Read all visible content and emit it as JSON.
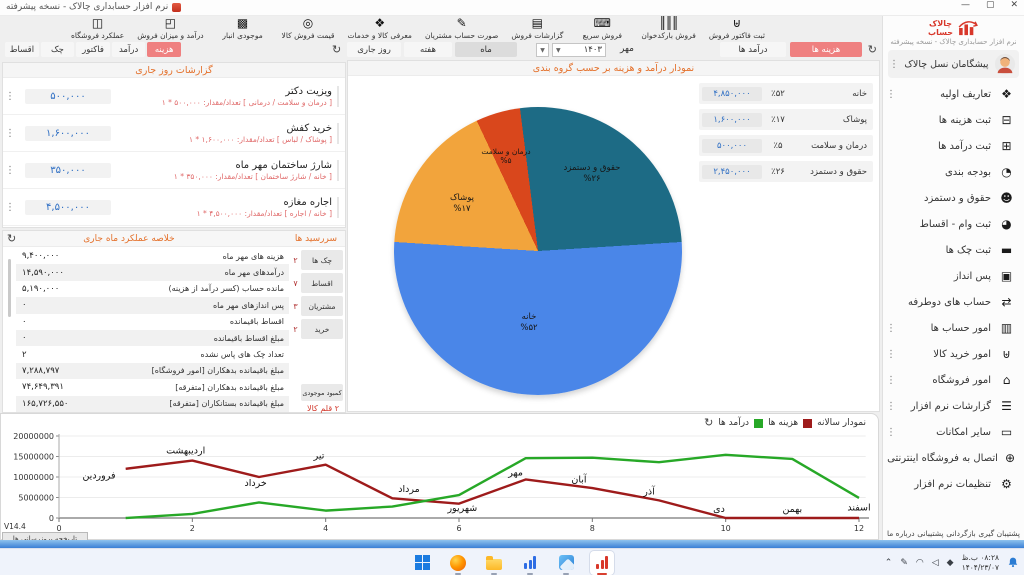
{
  "titlebar": {
    "title": "نرم افزار حسابداری چالاک - نسخه پیشرفته"
  },
  "window_controls": {
    "minimize": "—",
    "maximize": "▢",
    "close": "✕"
  },
  "sidebar": {
    "brand_line1": "چالاک",
    "brand_line2": "حساب",
    "subtitle": "نرم افزار حسابداری چالاک - نسخه پیشرفته",
    "user": "پیشگامان نسل چالاک",
    "items": [
      {
        "label": "تعاریف اولیه",
        "icon": "❖",
        "icon_name": "definitions-icon",
        "kebab": true
      },
      {
        "label": "ثبت هزینه ها",
        "icon": "⊟",
        "icon_name": "register-expenses-icon",
        "kebab": false
      },
      {
        "label": "ثبت درآمد ها",
        "icon": "⊞",
        "icon_name": "register-incomes-icon",
        "kebab": false
      },
      {
        "label": "بودجه بندی",
        "icon": "◔",
        "icon_name": "budgeting-icon",
        "kebab": false
      },
      {
        "label": "حقوق و دستمزد",
        "icon": "☻",
        "icon_name": "payroll-icon",
        "kebab": false
      },
      {
        "label": "ثبت وام - اقساط",
        "icon": "◕",
        "icon_name": "loans-installments-icon",
        "kebab": false
      },
      {
        "label": "ثبت چک ها",
        "icon": "▬",
        "icon_name": "checks-icon",
        "kebab": false
      },
      {
        "label": "پس انداز",
        "icon": "▣",
        "icon_name": "savings-icon",
        "kebab": false
      },
      {
        "label": "حساب های دوطرفه",
        "icon": "⇄",
        "icon_name": "two-way-accounts-icon",
        "kebab": false
      },
      {
        "label": "امور حساب ها",
        "icon": "▥",
        "icon_name": "accounts-icon",
        "kebab": true
      },
      {
        "label": "امور خرید کالا",
        "icon": "⊎",
        "icon_name": "purchases-cart-icon",
        "kebab": true
      },
      {
        "label": "امور فروشگاه",
        "icon": "⌂",
        "icon_name": "store-icon",
        "kebab": true
      },
      {
        "label": "گزارشات نرم افزار",
        "icon": "☰",
        "icon_name": "software-reports-icon",
        "kebab": true
      },
      {
        "label": "سایر امکانات",
        "icon": "▭",
        "icon_name": "other-features-icon",
        "kebab": true
      },
      {
        "label": "اتصال به فروشگاه اینترنتی",
        "icon": "⊕",
        "icon_name": "online-store-connect-icon",
        "kebab": false
      },
      {
        "label": "تنظیمات نرم افزار",
        "icon": "⚙",
        "icon_name": "settings-icon",
        "kebab": false
      }
    ],
    "footer_links": [
      "درباره ما",
      "پشتیبانی",
      "بازگردانی",
      "پشتیبان گیری"
    ]
  },
  "toolbar": {
    "buttons": [
      {
        "label": "ثبت فاکتور فروش",
        "icon": "⊎",
        "icon_name": "sales-invoice-cart-icon"
      },
      {
        "label": "فروش بارکدخوان",
        "icon": "║║║",
        "icon_name": "barcode-scanner-icon"
      },
      {
        "label": "فروش سریع",
        "icon": "⌨",
        "icon_name": "quick-sale-icon"
      },
      {
        "label": "گزارشات فروش",
        "icon": "▤",
        "icon_name": "sales-reports-printer-icon"
      },
      {
        "label": "صورت حساب مشتریان",
        "icon": "✎",
        "icon_name": "customer-statement-icon"
      },
      {
        "label": "معرفی کالا و خدمات",
        "icon": "❖",
        "icon_name": "goods-services-icon"
      },
      {
        "label": "قیمت فروش کالا",
        "icon": "◎",
        "icon_name": "price-lookup-icon"
      },
      {
        "label": "موجودی انبار",
        "icon": "▩",
        "icon_name": "inventory-box-icon"
      },
      {
        "label": "درآمد و میزان فروش",
        "icon": "◰",
        "icon_name": "income-sales-icon"
      },
      {
        "label": "عملکرد فروشگاه",
        "icon": "◫",
        "icon_name": "store-performance-icon"
      }
    ]
  },
  "filter": {
    "expense_tab": "هزینه ها",
    "income_tab": "درآمد ها",
    "month": "مهر",
    "year": "۱۴۰۳",
    "period_month": "ماه",
    "period_week": "هفته",
    "period_today": "روز جاری"
  },
  "left_tabs": {
    "items": [
      "هزینه",
      "درآمد",
      "فاکتور",
      "چک",
      "اقساط"
    ],
    "selected_index": 0
  },
  "daily_reports": {
    "title": "گزارشات روز جاری",
    "items": [
      {
        "title": "ویزیت دکتر",
        "sub": "[ درمان و سلامت / درمانی ]   تعداد/مقدار: ۵۰۰,۰۰۰ * ۱",
        "amount": "۵۰۰,۰۰۰"
      },
      {
        "title": "خرید کفش",
        "sub": "[ پوشاک / لباس ]   تعداد/مقدار: ۱,۶۰۰,۰۰۰ * ۱",
        "amount": "۱,۶۰۰,۰۰۰"
      },
      {
        "title": "شارژ ساختمان مهر ماه",
        "sub": "[ خانه / شارژ ساختمان ]   تعداد/مقدار: ۳۵۰,۰۰۰ * ۱",
        "amount": "۳۵۰,۰۰۰"
      },
      {
        "title": "اجاره مغازه",
        "sub": "[ خانه / اجاره ]   تعداد/مقدار: ۴,۵۰۰,۰۰۰ * ۱",
        "amount": "۴,۵۰۰,۰۰۰"
      }
    ]
  },
  "summary": {
    "title": "خلاصه عملکرد ماه جاری",
    "dues_title": "سررسید ها",
    "rows": [
      {
        "label": "هزینه های مهر ماه",
        "value": "۹,۴۰۰,۰۰۰"
      },
      {
        "label": "درآمدهای مهر ماه",
        "value": "۱۴,۵۹۰,۰۰۰"
      },
      {
        "label": "مانده حساب (کسر درآمد از هزینه)",
        "value": "۵,۱۹۰,۰۰۰"
      },
      {
        "label": "پس اندازهای  مهر ماه",
        "value": "۰"
      },
      {
        "label": "اقساط باقیمانده",
        "value": "۰"
      },
      {
        "label": "مبلغ اقساط باقیمانده",
        "value": "۰"
      },
      {
        "label": "تعداد چک های پاس نشده",
        "value": "۲"
      },
      {
        "label": "مبلغ باقیمانده بدهکاران [امور فروشگاه]",
        "value": "۷,۲۸۸,۷۹۷"
      },
      {
        "label": "مبلغ باقیمانده بدهکاران [متفرقه]",
        "value": "۷۴,۶۴۹,۳۹۱"
      },
      {
        "label": "مبلغ باقیمانده بستانکاران [متفرقه]",
        "value": "۱۶۵,۷۲۶,۵۵۰"
      }
    ],
    "side_tabs": [
      {
        "label": "چک ها",
        "badge": "۲"
      },
      {
        "label": "اقساط",
        "badge": "۷"
      },
      {
        "label": "مشتریان",
        "badge": "۳"
      },
      {
        "label": "خرید",
        "badge": "۲"
      }
    ],
    "shortage_tab": "کمبود موجودی",
    "shortage_value": "۲ قلم کالا"
  },
  "pie_panel": {
    "title": "نمودار درآمد و هزینه بر حسب گروه بندی"
  },
  "chart_data": [
    {
      "type": "pie",
      "title": "نمودار درآمد و هزینه بر حسب گروه بندی",
      "start_angle_deg": 86.4,
      "slices": [
        {
          "label": "خانه",
          "percent": 52,
          "percent_fa": "%۵۲",
          "table_percent_fa": "٪۵۲",
          "value_fa": "۴,۸۵۰,۰۰۰",
          "value": 4850000,
          "color": "#4a86e8"
        },
        {
          "label": "پوشاک",
          "percent": 17,
          "percent_fa": "%۱۷",
          "table_percent_fa": "٪۱۷",
          "value_fa": "۱,۶۰۰,۰۰۰",
          "value": 1600000,
          "color": "#f2a43c"
        },
        {
          "label": "درمان و سلامت",
          "percent": 5,
          "percent_fa": "%۵",
          "table_percent_fa": "٪۵",
          "value_fa": "۵۰۰,۰۰۰",
          "value": 500000,
          "color": "#d9471c"
        },
        {
          "label": "حقوق و دستمزد",
          "percent": 26,
          "percent_fa": "%۲۶",
          "table_percent_fa": "٪۲۶",
          "value_fa": "۲,۴۵۰,۰۰۰",
          "value": 2450000,
          "color": "#1d6b85"
        }
      ],
      "table_order": [
        0,
        1,
        2,
        3
      ]
    },
    {
      "type": "line",
      "legend_title": "نمودار سالانه",
      "ylim": [
        0,
        20000000
      ],
      "yticks": [
        0,
        5000000,
        10000000,
        15000000,
        20000000
      ],
      "xticks": [
        0,
        2,
        4,
        6,
        8,
        10,
        12
      ],
      "categories": [
        "فروردین",
        "اردیبهشت",
        "خرداد",
        "تیر",
        "مرداد",
        "شهریور",
        "مهر",
        "آبان",
        "آذر",
        "دی",
        "بهمن",
        "اسفند"
      ],
      "series": [
        {
          "name": "هزینه ها",
          "color": "#9e1b1b",
          "values": [
            12000000,
            14000000,
            10000000,
            13000000,
            4800000,
            3500000,
            9400000,
            7300000,
            4300000,
            0,
            0,
            0
          ]
        },
        {
          "name": "درآمد ها",
          "color": "#27a827",
          "values": [
            0,
            1000000,
            3800000,
            1800000,
            2800000,
            5600000,
            14590000,
            14700000,
            13600000,
            15400000,
            14400000,
            4900000
          ]
        }
      ],
      "month_label_pos": [
        {
          "x": 0.6,
          "y": 9600000
        },
        {
          "x": 1.9,
          "y": 15700000
        },
        {
          "x": 2.95,
          "y": 7800000
        },
        {
          "x": 3.9,
          "y": 14500000
        },
        {
          "x": 5.25,
          "y": 6300000
        },
        {
          "x": 6.05,
          "y": 1700000
        },
        {
          "x": 6.85,
          "y": 10400000
        },
        {
          "x": 7.8,
          "y": 8700000
        },
        {
          "x": 8.85,
          "y": 5700000
        },
        {
          "x": 9.9,
          "y": 1500000
        },
        {
          "x": 11.0,
          "y": 1500000
        },
        {
          "x": 12.0,
          "y": 1800000
        }
      ]
    }
  ],
  "version": {
    "label": "V14.4",
    "button": "تاریخچه بروزرسانی ها"
  },
  "taskbar": {
    "clock": {
      "time": "۰۸:۲۸ ب.ظ",
      "date": "۱۴۰۴/۲۳/۰۷"
    },
    "tray": [
      {
        "glyph": "⌃",
        "name": "hidden-icons-chevron"
      },
      {
        "glyph": "✎",
        "name": "pen-input-icon"
      },
      {
        "glyph": "◠",
        "name": "wifi-icon"
      },
      {
        "glyph": "◁",
        "name": "volume-icon"
      },
      {
        "glyph": "◆",
        "name": "security-tray-icon"
      }
    ]
  }
}
